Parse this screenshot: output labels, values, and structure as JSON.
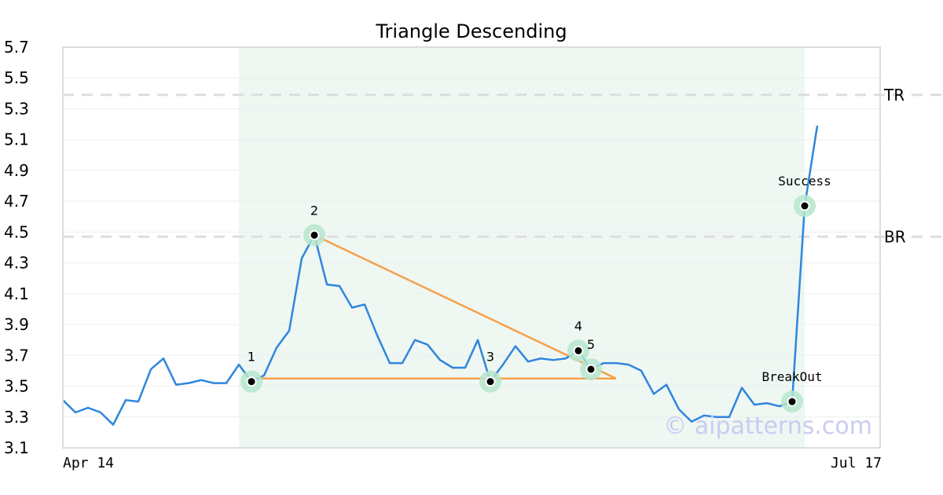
{
  "chart_data": {
    "type": "line",
    "title": "Triangle Descending",
    "y_ticks": [
      "5.7",
      "5.5",
      "5.3",
      "5.1",
      "4.9",
      "4.7",
      "4.5",
      "4.3",
      "4.1",
      "3.9",
      "3.7",
      "3.5",
      "3.3",
      "3.1"
    ],
    "ylim": [
      3.1,
      5.7
    ],
    "x_ticks": [
      {
        "label": "Apr 14",
        "index": 0
      },
      {
        "label": "Jul 17",
        "index": 64
      }
    ],
    "grid": true,
    "colors": {
      "line": "#2f86dd",
      "trend": "#f5a04a",
      "marker_halo": "#b6e6cc",
      "shade": "#eef7f2",
      "level": "#dddddd"
    },
    "series": [
      {
        "values": [
          3.41,
          3.33,
          3.36,
          3.33,
          3.25,
          3.41,
          3.4,
          3.61,
          3.68,
          3.51,
          3.52,
          3.54,
          3.52,
          3.52,
          3.64,
          3.53,
          3.57,
          3.75,
          3.86,
          4.33,
          4.48,
          4.16,
          4.15,
          4.01,
          4.03,
          3.83,
          3.65,
          3.65,
          3.8,
          3.77,
          3.67,
          3.62,
          3.62,
          3.8,
          3.53,
          3.64,
          3.76,
          3.66,
          3.68,
          3.67,
          3.68,
          3.73,
          3.61,
          3.65,
          3.65,
          3.64,
          3.6,
          3.45,
          3.51,
          3.35,
          3.27,
          3.31,
          3.3,
          3.3,
          3.49,
          3.38,
          3.39,
          3.37,
          3.4,
          4.67,
          5.19
        ]
      }
    ],
    "shaded_range": [
      13,
      59
    ],
    "levels": [
      {
        "label": "TR",
        "value": 5.39
      },
      {
        "label": "BR",
        "value": 4.47
      }
    ],
    "trendlines": [
      {
        "from": [
          15,
          3.55
        ],
        "to": [
          43,
          3.55
        ]
      },
      {
        "from": [
          20,
          4.48
        ],
        "to": [
          43,
          3.55
        ]
      }
    ],
    "points": [
      {
        "label": "1",
        "index": 15,
        "value": 3.53,
        "label_dx": 0,
        "label_dy": -26
      },
      {
        "label": "2",
        "index": 20,
        "value": 4.48,
        "label_dx": 0,
        "label_dy": -26
      },
      {
        "label": "3",
        "index": 34,
        "value": 3.53,
        "label_dx": 0,
        "label_dy": -26
      },
      {
        "label": "4",
        "index": 41,
        "value": 3.73,
        "label_dx": 0,
        "label_dy": -26
      },
      {
        "label": "5",
        "index": 42,
        "value": 3.61,
        "label_dx": 0,
        "label_dy": -26
      },
      {
        "label": "BreakOut",
        "index": 58,
        "value": 3.4,
        "label_dx": 0,
        "label_dy": -26
      },
      {
        "label": "Success",
        "index": 59,
        "value": 4.67,
        "label_dx": 0,
        "label_dy": -26
      }
    ],
    "watermark": "© aipatterns.com"
  }
}
